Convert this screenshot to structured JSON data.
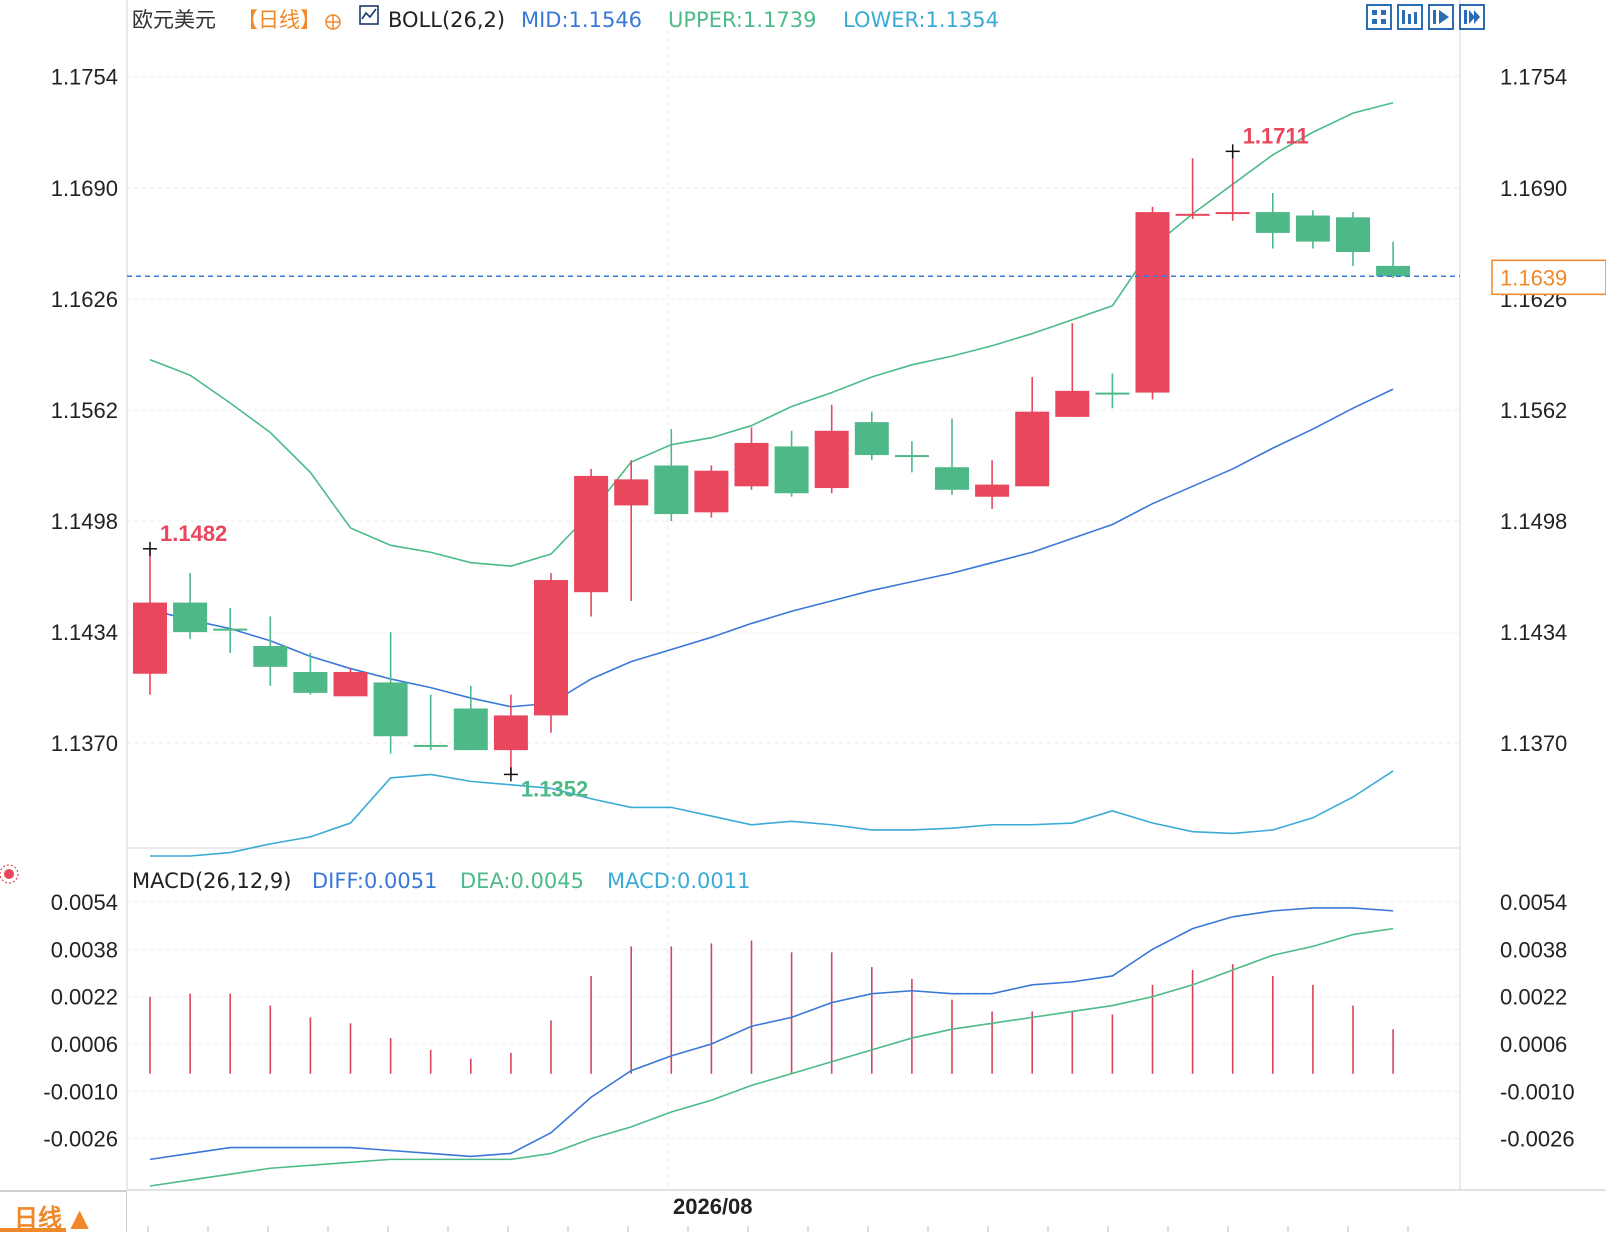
{
  "header": {
    "instrument": "欧元美元",
    "period_tag": "【日线】",
    "indicator": "BOLL(26,2)",
    "mid_label": "MID:1.1546",
    "upper_label": "UPPER:1.1739",
    "lower_label": "LOWER:1.1354",
    "macd_title": "MACD(26,12,9)",
    "diff_label": "DIFF:0.0051",
    "dea_label": "DEA:0.0045",
    "macd_label": "MACD:0.0011"
  },
  "toolbar": {
    "icons": [
      "grid-icon",
      "bar-chart-icon",
      "play-icon",
      "forward-icon"
    ]
  },
  "period_tab": {
    "label": "日线 ▲"
  },
  "colors": {
    "up": "#e8475d",
    "down": "#4eb888",
    "mid": "#3a78d8",
    "upper": "#4dbb88",
    "lower": "#3aabd6",
    "diff": "#3a78d8",
    "dea": "#4dbb88",
    "macd_bar": "#d6455e",
    "header_label": "#333333",
    "period_tag": "#f0882a",
    "price_tag": "#f0882a",
    "dashed_line": "#3a78d8"
  },
  "chart_data": [
    {
      "type": "candlestick",
      "y_ticks": [
        "1.1754",
        "1.1690",
        "1.1626",
        "1.1562",
        "1.1498",
        "1.1434",
        "1.1370"
      ],
      "ylim": [
        1.1305,
        1.1774
      ],
      "x_label": "2026/08",
      "current_price": "1.1639",
      "annotations": [
        {
          "text": "1.1482",
          "index": 0,
          "value": 1.1482,
          "kind": "high"
        },
        {
          "text": "1.1352",
          "index": 9,
          "value": 1.1352,
          "kind": "low"
        },
        {
          "text": "1.1711",
          "index": 27,
          "value": 1.1711,
          "kind": "high"
        }
      ],
      "candles": [
        {
          "o": 1.141,
          "h": 1.1482,
          "l": 1.1398,
          "c": 1.1451
        },
        {
          "o": 1.1451,
          "h": 1.1468,
          "l": 1.143,
          "c": 1.1434
        },
        {
          "o": 1.1436,
          "h": 1.1448,
          "l": 1.1422,
          "c": 1.1436
        },
        {
          "o": 1.1426,
          "h": 1.1443,
          "l": 1.1403,
          "c": 1.1414
        },
        {
          "o": 1.1411,
          "h": 1.1422,
          "l": 1.1398,
          "c": 1.1399
        },
        {
          "o": 1.1397,
          "h": 1.1413,
          "l": 1.1397,
          "c": 1.1411
        },
        {
          "o": 1.1405,
          "h": 1.1434,
          "l": 1.1364,
          "c": 1.1374
        },
        {
          "o": 1.1369,
          "h": 1.1398,
          "l": 1.1366,
          "c": 1.1369
        },
        {
          "o": 1.139,
          "h": 1.1403,
          "l": 1.1366,
          "c": 1.1366
        },
        {
          "o": 1.1366,
          "h": 1.1398,
          "l": 1.1352,
          "c": 1.1386
        },
        {
          "o": 1.1386,
          "h": 1.1468,
          "l": 1.1376,
          "c": 1.1464
        },
        {
          "o": 1.1457,
          "h": 1.1528,
          "l": 1.1443,
          "c": 1.1524
        },
        {
          "o": 1.1507,
          "h": 1.1533,
          "l": 1.1452,
          "c": 1.1522
        },
        {
          "o": 1.153,
          "h": 1.1551,
          "l": 1.1498,
          "c": 1.1502
        },
        {
          "o": 1.1503,
          "h": 1.153,
          "l": 1.15,
          "c": 1.1527
        },
        {
          "o": 1.1518,
          "h": 1.1552,
          "l": 1.1516,
          "c": 1.1543
        },
        {
          "o": 1.1541,
          "h": 1.155,
          "l": 1.1512,
          "c": 1.1514
        },
        {
          "o": 1.1517,
          "h": 1.1565,
          "l": 1.1514,
          "c": 1.155
        },
        {
          "o": 1.1555,
          "h": 1.1561,
          "l": 1.1533,
          "c": 1.1536
        },
        {
          "o": 1.1536,
          "h": 1.1544,
          "l": 1.1526,
          "c": 1.1536
        },
        {
          "o": 1.1529,
          "h": 1.1557,
          "l": 1.1513,
          "c": 1.1516
        },
        {
          "o": 1.1512,
          "h": 1.1533,
          "l": 1.1505,
          "c": 1.1519
        },
        {
          "o": 1.1518,
          "h": 1.1581,
          "l": 1.1518,
          "c": 1.1561
        },
        {
          "o": 1.1558,
          "h": 1.1612,
          "l": 1.1558,
          "c": 1.1573
        },
        {
          "o": 1.1572,
          "h": 1.1583,
          "l": 1.1563,
          "c": 1.1572
        },
        {
          "o": 1.1572,
          "h": 1.1679,
          "l": 1.1568,
          "c": 1.1676
        },
        {
          "o": 1.1675,
          "h": 1.1707,
          "l": 1.1672,
          "c": 1.1675
        },
        {
          "o": 1.1676,
          "h": 1.1711,
          "l": 1.1671,
          "c": 1.1676
        },
        {
          "o": 1.1676,
          "h": 1.1687,
          "l": 1.1655,
          "c": 1.1664
        },
        {
          "o": 1.1674,
          "h": 1.1677,
          "l": 1.1655,
          "c": 1.1659
        },
        {
          "o": 1.1673,
          "h": 1.1676,
          "l": 1.1645,
          "c": 1.1653
        },
        {
          "o": 1.1645,
          "h": 1.1659,
          "l": 1.1638,
          "c": 1.1639
        }
      ],
      "series": [
        {
          "name": "MID",
          "values": [
            1.1447,
            1.1441,
            1.1436,
            1.1429,
            1.142,
            1.1413,
            1.1407,
            1.1402,
            1.1396,
            1.1391,
            1.1393,
            1.1407,
            1.1417,
            1.1424,
            1.1431,
            1.1439,
            1.1446,
            1.1452,
            1.1458,
            1.1463,
            1.1468,
            1.1474,
            1.148,
            1.1488,
            1.1496,
            1.1508,
            1.1518,
            1.1528,
            1.154,
            1.1551,
            1.1563,
            1.1574
          ]
        },
        {
          "name": "UPPER",
          "values": [
            1.1591,
            1.1582,
            1.1566,
            1.1549,
            1.1526,
            1.1494,
            1.1484,
            1.148,
            1.1474,
            1.1472,
            1.1479,
            1.1503,
            1.1532,
            1.1542,
            1.1546,
            1.1553,
            1.1564,
            1.1572,
            1.1581,
            1.1588,
            1.1593,
            1.1599,
            1.1606,
            1.1614,
            1.1622,
            1.1656,
            1.1675,
            1.1692,
            1.1709,
            1.1722,
            1.1733,
            1.1739
          ]
        },
        {
          "name": "LOWER",
          "values": [
            1.1305,
            1.1305,
            1.1307,
            1.1312,
            1.1316,
            1.1324,
            1.135,
            1.1352,
            1.1348,
            1.1346,
            1.1344,
            1.1338,
            1.1333,
            1.1333,
            1.1328,
            1.1323,
            1.1325,
            1.1323,
            1.132,
            1.132,
            1.1321,
            1.1323,
            1.1323,
            1.1324,
            1.1331,
            1.1324,
            1.1319,
            1.1318,
            1.132,
            1.1327,
            1.1339,
            1.1354
          ]
        }
      ]
    },
    {
      "type": "bar+line",
      "y_ticks": [
        "0.0054",
        "0.0038",
        "0.0022",
        "0.0006",
        "-0.0010",
        "-0.0026"
      ],
      "ylim": [
        -0.0042,
        0.0054
      ],
      "bar_base": 0.0,
      "histogram": [
        0.0022,
        0.0023,
        0.0023,
        0.0019,
        0.0015,
        0.0013,
        0.0008,
        0.0004,
        0.0001,
        0.0003,
        0.0014,
        0.0029,
        0.0039,
        0.0039,
        0.004,
        0.0041,
        0.0037,
        0.0037,
        0.0032,
        0.0028,
        0.0021,
        0.0017,
        0.0017,
        0.0017,
        0.0016,
        0.0026,
        0.0031,
        0.0033,
        0.0029,
        0.0026,
        0.0019,
        0.0011
      ],
      "series": [
        {
          "name": "DIFF",
          "values": [
            -0.0033,
            -0.0031,
            -0.0029,
            -0.0029,
            -0.0029,
            -0.0029,
            -0.003,
            -0.0031,
            -0.0032,
            -0.0031,
            -0.0024,
            -0.0012,
            -0.0003,
            0.0002,
            0.0006,
            0.0012,
            0.0015,
            0.002,
            0.0023,
            0.0024,
            0.0023,
            0.0023,
            0.0026,
            0.0027,
            0.0029,
            0.0038,
            0.0045,
            0.0049,
            0.0051,
            0.0052,
            0.0052,
            0.0051
          ]
        },
        {
          "name": "DEA",
          "values": [
            -0.0042,
            -0.004,
            -0.0038,
            -0.0036,
            -0.0035,
            -0.0034,
            -0.0033,
            -0.0033,
            -0.0033,
            -0.0033,
            -0.0031,
            -0.0026,
            -0.0022,
            -0.0017,
            -0.0013,
            -0.0008,
            -0.0004,
            0.0,
            0.0004,
            0.0008,
            0.0011,
            0.0013,
            0.0015,
            0.0017,
            0.0019,
            0.0022,
            0.0026,
            0.0031,
            0.0036,
            0.0039,
            0.0043,
            0.0045
          ]
        }
      ]
    }
  ]
}
